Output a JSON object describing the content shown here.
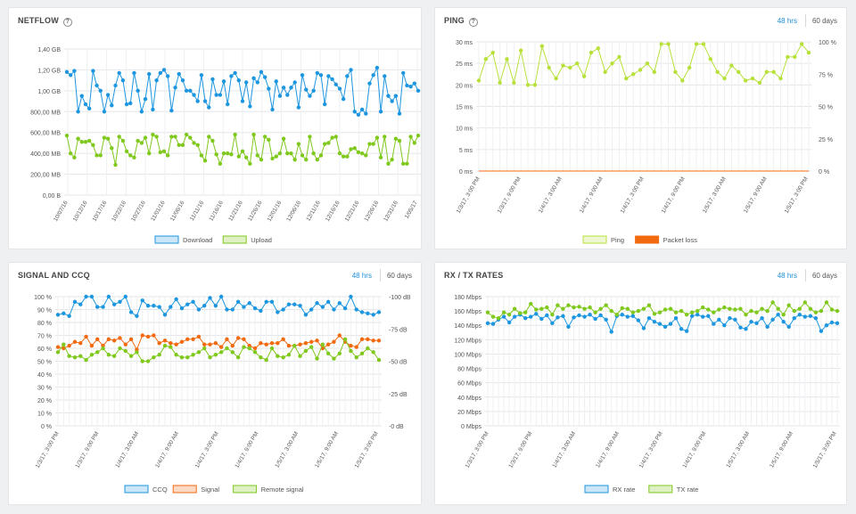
{
  "panels": {
    "netflow": {
      "title": "NETFLOW",
      "help_icon": "?"
    },
    "ping": {
      "title": "PING",
      "help_icon": "?",
      "range_active": "48 hrs",
      "range_other": "60 days"
    },
    "signal": {
      "title": "SIGNAL AND CCQ",
      "range_active": "48 hrs",
      "range_other": "60 days"
    },
    "rates": {
      "title": "RX / TX RATES",
      "range_active": "48 hrs",
      "range_other": "60 days"
    }
  },
  "colors": {
    "download": "#1d96e0",
    "upload": "#7fc81c",
    "ping": "#b7e03a",
    "packet_loss": "#f26a10",
    "ccq": "#1d96e0",
    "signal": "#f26a10",
    "remote_signal": "#7fc81c",
    "rx": "#1d96e0",
    "tx": "#7fc81c"
  },
  "chart_data": [
    {
      "id": "netflow",
      "type": "line",
      "y_ticks": [
        "0,00 B",
        "200,00 MB",
        "400,00 MB",
        "600,00 MB",
        "800,00 MB",
        "1,00 GB",
        "1,20 GB",
        "1,40 GB"
      ],
      "ylim": [
        0,
        1400
      ],
      "x_ticks": [
        "10/07/16",
        "10/12/16",
        "10/17/16",
        "10/22/16",
        "10/27/16",
        "11/01/16",
        "11/06/16",
        "11/11/16",
        "11/16/16",
        "11/21/16",
        "11/26/16",
        "12/01/16",
        "12/06/16",
        "12/11/16",
        "12/16/16",
        "12/21/16",
        "12/26/16",
        "12/31/16",
        "1/05/17"
      ],
      "series": [
        {
          "name": "Download",
          "values": [
            1180,
            1150,
            1190,
            800,
            950,
            870,
            830,
            1190,
            1050,
            1000,
            800,
            960,
            860,
            1050,
            1170,
            1100,
            870,
            880,
            1170,
            1000,
            800,
            920,
            1160,
            820,
            1100,
            1170,
            1200,
            1140,
            810,
            1030,
            1160,
            1100,
            1000,
            1000,
            960,
            900,
            1150,
            900,
            840,
            1110,
            960,
            960,
            1090,
            870,
            1140,
            1170,
            1100,
            900,
            1080,
            850,
            1120,
            1080,
            1180,
            1130,
            1020,
            820,
            1090,
            950,
            1030,
            960,
            1030,
            1080,
            840,
            1150,
            1010,
            950,
            1000,
            1170,
            1150,
            870,
            1140,
            1110,
            1060,
            1020,
            920,
            1140,
            1200,
            800,
            770,
            820,
            780,
            1070,
            1150,
            1220,
            800,
            1140,
            950,
            900,
            950,
            780,
            1170,
            1050,
            1040,
            1070,
            1000
          ]
        },
        {
          "name": "Upload",
          "values": [
            570,
            400,
            360,
            540,
            510,
            510,
            520,
            480,
            380,
            380,
            550,
            540,
            450,
            290,
            560,
            520,
            420,
            380,
            360,
            520,
            500,
            550,
            400,
            580,
            560,
            410,
            420,
            380,
            560,
            560,
            480,
            480,
            580,
            550,
            500,
            480,
            380,
            330,
            560,
            520,
            390,
            300,
            400,
            400,
            390,
            580,
            370,
            420,
            360,
            300,
            580,
            380,
            340,
            560,
            530,
            350,
            370,
            400,
            540,
            400,
            400,
            340,
            490,
            380,
            340,
            560,
            400,
            340,
            380,
            490,
            500,
            550,
            560,
            400,
            370,
            370,
            440,
            450,
            410,
            400,
            380,
            490,
            490,
            550,
            360,
            560,
            300,
            340,
            540,
            520,
            300,
            300,
            560,
            500,
            570
          ]
        }
      ]
    },
    {
      "id": "ping",
      "type": "line",
      "y_ticks": [
        "0 ms",
        "5 ms",
        "10 ms",
        "15 ms",
        "20 ms",
        "25 ms",
        "30 ms"
      ],
      "ylim": [
        0,
        30
      ],
      "y2_ticks": [
        "0 %",
        "25 %",
        "50 %",
        "75 %",
        "100 %"
      ],
      "y2lim": [
        0,
        100
      ],
      "x_ticks": [
        "1/3/17, 3:00 PM",
        "1/3/17, 9:00 PM",
        "1/4/17, 3:00 AM",
        "1/4/17, 9:00 AM",
        "1/4/17, 3:00 PM",
        "1/4/17, 9:00 PM",
        "1/5/17, 3:00 AM",
        "1/5/17, 9:00 AM",
        "1/5/17, 3:00 PM"
      ],
      "series": [
        {
          "name": "Ping",
          "values": [
            21,
            26,
            27.5,
            20.5,
            26,
            20.5,
            28,
            20,
            20,
            29,
            24,
            21.5,
            24.5,
            24,
            25,
            22,
            27.5,
            28.5,
            23,
            25,
            26.5,
            21.5,
            22.5,
            23.5,
            25,
            23,
            29.5,
            29.5,
            23,
            21,
            24,
            29.5,
            29.5,
            26,
            23,
            21.5,
            24.5,
            23,
            21,
            21.5,
            20.5,
            23,
            23,
            21.5,
            26.5,
            26.5,
            29.5,
            27.5
          ]
        },
        {
          "name": "Packet loss",
          "values": [
            0,
            0,
            0,
            0,
            0,
            0,
            0,
            0,
            0,
            0,
            0,
            0,
            0,
            0,
            0,
            0,
            0,
            0,
            0,
            0,
            0,
            0,
            0,
            0,
            0,
            0,
            0,
            0,
            0,
            0,
            0,
            0,
            0,
            0,
            0,
            0,
            0,
            0,
            0,
            0,
            0,
            0,
            0,
            0,
            0,
            0,
            0,
            0
          ]
        }
      ]
    },
    {
      "id": "signal",
      "type": "line",
      "y_ticks": [
        "0 %",
        "10 %",
        "20 %",
        "30 %",
        "40 %",
        "50 %",
        "60 %",
        "70 %",
        "80 %",
        "90 %",
        "100 %"
      ],
      "ylim": [
        0,
        100
      ],
      "y2_ticks": [
        "-0 dB",
        "-25 dB",
        "-50 dB",
        "-75 dB",
        "-100 dB"
      ],
      "y2lim": [
        0,
        -100
      ],
      "x_ticks": [
        "1/3/17, 3:00 PM",
        "1/3/17, 9:00 PM",
        "1/4/17, 3:00 AM",
        "1/4/17, 9:00 AM",
        "1/4/17, 3:00 PM",
        "1/4/17, 9:00 PM",
        "1/5/17, 3:00 AM",
        "1/5/17, 9:00 AM",
        "1/5/17, 3:00 PM"
      ],
      "series": [
        {
          "name": "CCQ",
          "values": [
            86,
            87,
            85,
            96,
            94,
            100,
            100,
            92,
            92,
            100,
            94,
            96,
            100,
            88,
            85,
            97,
            93,
            93,
            92,
            86,
            92,
            98,
            91,
            94,
            96,
            90,
            93,
            99,
            93,
            100,
            90,
            90,
            96,
            92,
            95,
            91,
            89,
            96,
            96,
            88,
            90,
            94,
            94,
            93,
            86,
            90,
            95,
            92,
            96,
            90,
            95,
            91,
            100,
            90,
            88,
            87,
            86,
            88
          ]
        },
        {
          "name": "Signal",
          "values": [
            61,
            60,
            62,
            65,
            64,
            69,
            62,
            67,
            62,
            67,
            66,
            68,
            63,
            67,
            59,
            70,
            69,
            70,
            64,
            66,
            64,
            63,
            65,
            67,
            67,
            69,
            63,
            63,
            64,
            61,
            67,
            62,
            68,
            67,
            62,
            60,
            64,
            63,
            64,
            64,
            67,
            62,
            62,
            63,
            64,
            65,
            66,
            60,
            63,
            65,
            70,
            65,
            62,
            61,
            67,
            67,
            66,
            66
          ]
        },
        {
          "name": "Remote signal",
          "values": [
            57,
            63,
            54,
            53,
            54,
            51,
            55,
            57,
            60,
            55,
            54,
            60,
            58,
            54,
            57,
            50,
            50,
            53,
            55,
            62,
            61,
            55,
            53,
            53,
            55,
            57,
            60,
            53,
            55,
            57,
            60,
            57,
            53,
            61,
            60,
            57,
            53,
            51,
            60,
            54,
            53,
            55,
            62,
            54,
            58,
            61,
            52,
            63,
            56,
            52,
            56,
            67,
            58,
            53,
            56,
            60,
            57,
            51
          ]
        }
      ]
    },
    {
      "id": "rates",
      "type": "line",
      "y_ticks": [
        "0 Mbps",
        "20 Mbps",
        "40 Mbps",
        "60 Mbps",
        "80 Mbps",
        "100 Mbps",
        "120 Mbps",
        "140 Mbps",
        "160 Mbps",
        "180 Mbps"
      ],
      "ylim": [
        0,
        180
      ],
      "x_ticks": [
        "1/3/17, 3:00 PM",
        "1/3/17, 9:00 PM",
        "1/4/17, 3:00 AM",
        "1/4/17, 9:00 AM",
        "1/4/17, 3:00 PM",
        "1/4/17, 9:00 PM",
        "1/5/17, 3:00 AM",
        "1/5/17, 9:00 AM",
        "1/5/17, 3:00 PM"
      ],
      "series": [
        {
          "name": "RX rate",
          "values": [
            143,
            142,
            148,
            152,
            144,
            152,
            155,
            150,
            152,
            156,
            149,
            154,
            143,
            151,
            153,
            138,
            151,
            154,
            152,
            155,
            149,
            154,
            148,
            131,
            153,
            155,
            152,
            153,
            147,
            136,
            150,
            145,
            142,
            138,
            142,
            150,
            135,
            132,
            153,
            155,
            152,
            153,
            142,
            148,
            140,
            150,
            148,
            137,
            135,
            145,
            143,
            150,
            138,
            148,
            155,
            145,
            138,
            150,
            155,
            152,
            153,
            150,
            132,
            140,
            144,
            143
          ]
        },
        {
          "name": "TX rate",
          "values": [
            158,
            152,
            150,
            158,
            155,
            163,
            157,
            158,
            170,
            162,
            163,
            165,
            155,
            168,
            163,
            168,
            165,
            166,
            163,
            165,
            158,
            163,
            168,
            160,
            155,
            164,
            163,
            158,
            160,
            163,
            168,
            156,
            158,
            162,
            163,
            158,
            160,
            155,
            158,
            160,
            165,
            162,
            158,
            162,
            165,
            163,
            162,
            163,
            155,
            160,
            158,
            163,
            160,
            172,
            163,
            155,
            168,
            160,
            163,
            172,
            163,
            158,
            160,
            172,
            162,
            160
          ]
        }
      ]
    }
  ]
}
